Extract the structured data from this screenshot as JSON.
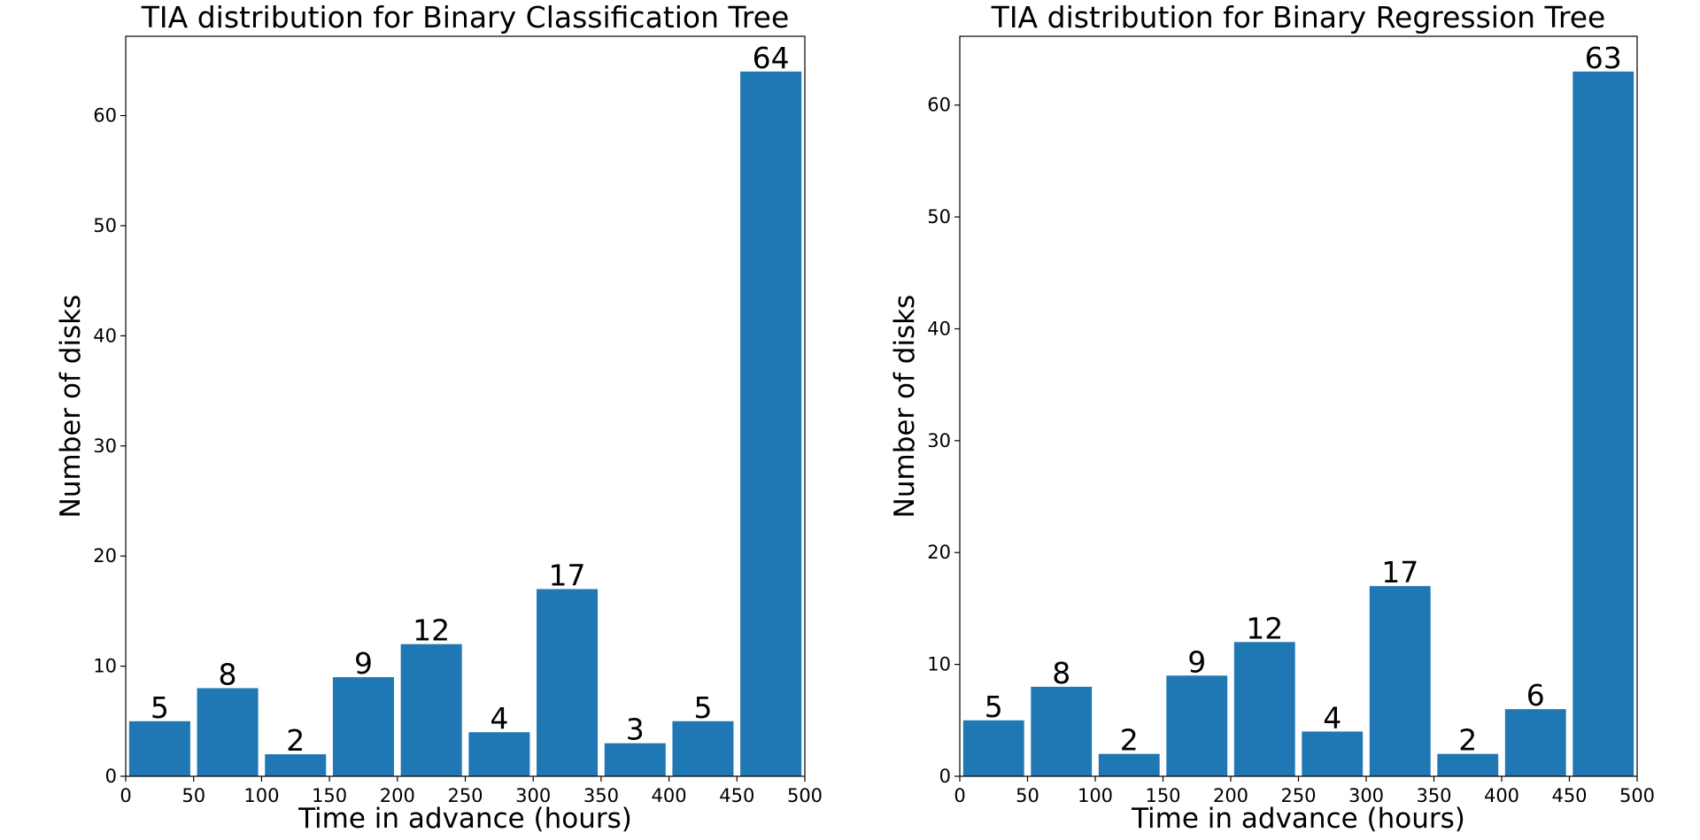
{
  "chart_data": [
    {
      "type": "bar",
      "title": "TIA distribution for Binary Classification Tree",
      "xlabel": "Time in advance (hours)",
      "ylabel": "Number of disks",
      "x_bin_edges": [
        0,
        50,
        100,
        150,
        200,
        250,
        300,
        350,
        400,
        450,
        500
      ],
      "values": [
        5,
        8,
        2,
        9,
        12,
        4,
        17,
        3,
        5,
        64
      ],
      "data_labels": [
        "5",
        "8",
        "2",
        "9",
        "12",
        "4",
        "17",
        "3",
        "5",
        "64"
      ],
      "xlim": [
        0,
        500
      ],
      "ylim": [
        0,
        67.2
      ],
      "xticks": [
        0,
        50,
        100,
        150,
        200,
        250,
        300,
        350,
        400,
        450,
        500
      ],
      "xtick_labels": [
        "0",
        "50",
        "100",
        "150",
        "200",
        "250",
        "300",
        "350",
        "400",
        "450",
        "500"
      ],
      "yticks": [
        0,
        10,
        20,
        30,
        40,
        50,
        60
      ],
      "ytick_labels": [
        "0",
        "10",
        "20",
        "30",
        "40",
        "50",
        "60"
      ],
      "bar_color": "#1f77b4",
      "grid": false
    },
    {
      "type": "bar",
      "title": "TIA distribution for Binary Regression Tree",
      "xlabel": "Time in advance (hours)",
      "ylabel": "Number of disks",
      "x_bin_edges": [
        0,
        50,
        100,
        150,
        200,
        250,
        300,
        350,
        400,
        450,
        500
      ],
      "values": [
        5,
        8,
        2,
        9,
        12,
        4,
        17,
        2,
        6,
        63
      ],
      "data_labels": [
        "5",
        "8",
        "2",
        "9",
        "12",
        "4",
        "17",
        "2",
        "6",
        "63"
      ],
      "xlim": [
        0,
        500
      ],
      "ylim": [
        0,
        66.15
      ],
      "xticks": [
        0,
        50,
        100,
        150,
        200,
        250,
        300,
        350,
        400,
        450,
        500
      ],
      "xtick_labels": [
        "0",
        "50",
        "100",
        "150",
        "200",
        "250",
        "300",
        "350",
        "400",
        "450",
        "500"
      ],
      "yticks": [
        0,
        10,
        20,
        30,
        40,
        50,
        60
      ],
      "ytick_labels": [
        "0",
        "10",
        "20",
        "30",
        "40",
        "50",
        "60"
      ],
      "bar_color": "#1f77b4",
      "grid": false
    }
  ]
}
